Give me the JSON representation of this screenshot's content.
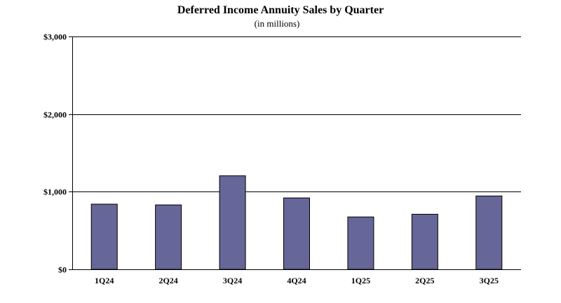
{
  "chart_data": {
    "type": "bar",
    "title": "Deferred Income Annuity Sales by Quarter",
    "subtitle": "(in millions)",
    "categories": [
      "1Q24",
      "2Q24",
      "3Q24",
      "4Q24",
      "1Q25",
      "2Q25",
      "3Q25"
    ],
    "values": [
      840,
      830,
      1205,
      920,
      675,
      710,
      945
    ],
    "xlabel": "",
    "ylabel": "",
    "ylim": [
      0,
      3000
    ],
    "yticks": [
      0,
      1000,
      2000,
      3000
    ],
    "ytick_labels": [
      "$0",
      "$1,000",
      "$2,000",
      "$3,000"
    ],
    "grid": true,
    "legend": "none",
    "bar_color": "#666699"
  }
}
